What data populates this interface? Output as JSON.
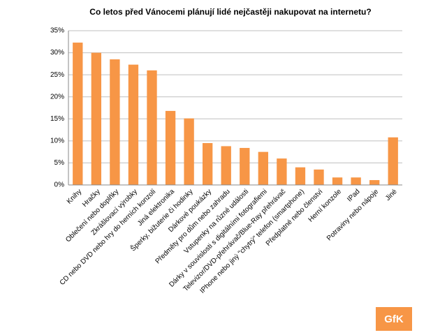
{
  "chart_data": {
    "type": "bar",
    "title": "Co letos před Vánocemi plánují lidé nejčastěji nakupovat na internetu?",
    "categories": [
      "Knihy",
      "Hračky",
      "Oblečení nebo doplňky",
      "Zkrášlovací výrobky",
      "CD nebo DVD nebo hry do herních konzolí",
      "Jiná elektronika",
      "Šperky, bižuterie či hodinky",
      "Dárkové poukázky",
      "Předměty pro dům nebo zahradu",
      "Vstupenky na různé události",
      "Dárky v souvislosti s digitálními fotografiemi",
      "Televizor/DVD-přehrávač/Blue-Ray přehrávač",
      "IPhone nebo jiný \"chytrý\" telefon (smartphone)",
      "Předplatné nebo členství",
      "Herní konzole",
      "IPad",
      "Potraviny nebo nápoje",
      "Jiné"
    ],
    "values": [
      32.3,
      30,
      28.5,
      27.3,
      26,
      16.8,
      15.1,
      9.5,
      8.8,
      8.4,
      7.5,
      6,
      4,
      3.5,
      1.7,
      1.7,
      1.1,
      10.8
    ],
    "color": "#f79646",
    "ylim": [
      0,
      35
    ],
    "yticks": [
      {
        "value": 0,
        "label": "0%"
      },
      {
        "value": 5,
        "label": "5%"
      },
      {
        "value": 10,
        "label": "10%"
      },
      {
        "value": 15,
        "label": "15%"
      },
      {
        "value": 20,
        "label": "20%"
      },
      {
        "value": 25,
        "label": "25%"
      },
      {
        "value": 30,
        "label": "30%"
      },
      {
        "value": 35,
        "label": "35%"
      }
    ],
    "grid": true
  },
  "logo": "GfK"
}
